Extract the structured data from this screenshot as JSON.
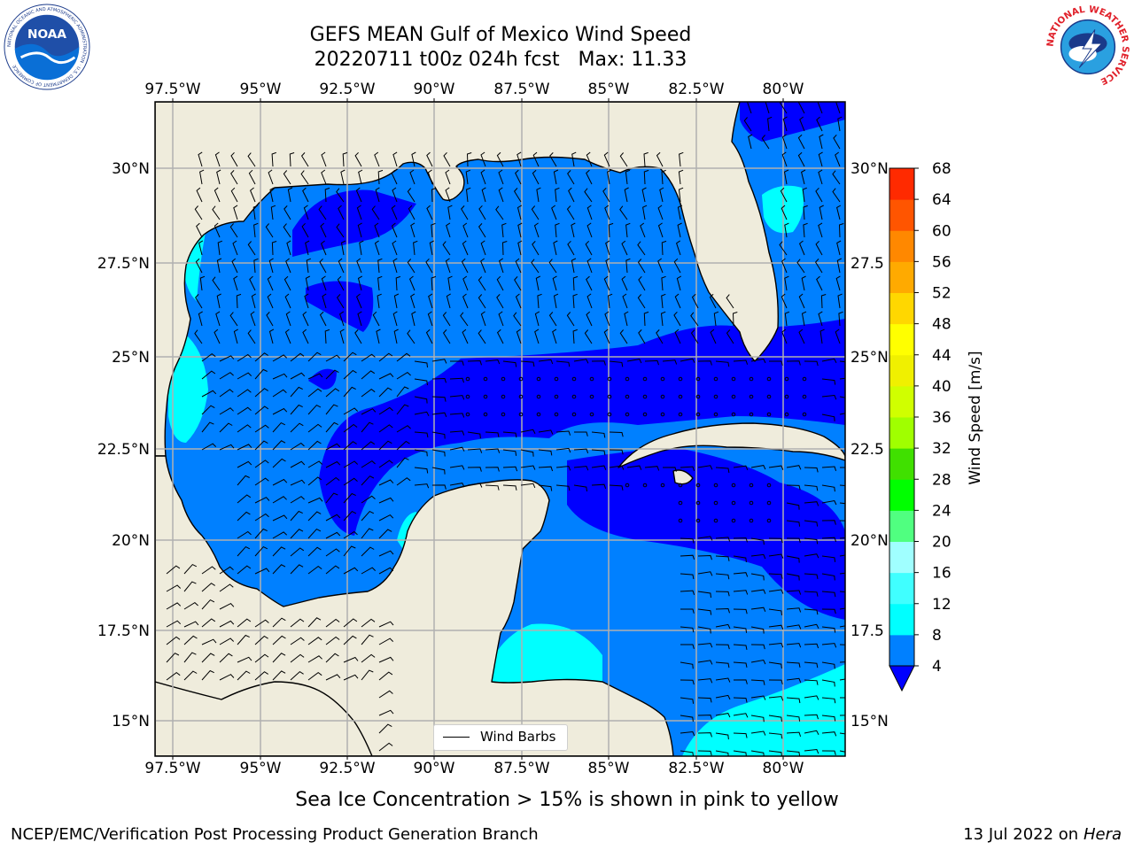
{
  "title": {
    "line1": "GEFS MEAN Gulf of Mexico Wind Speed",
    "line2": "20220711 t00z 024h fcst   Max: 11.33"
  },
  "map": {
    "lon_labels": [
      "97.5°W",
      "95°W",
      "92.5°W",
      "90°W",
      "87.5°W",
      "85°W",
      "82.5°W",
      "80°W"
    ],
    "lat_labels_left": [
      "30°N",
      "27.5°N",
      "25°N",
      "22.5°N",
      "20°N",
      "17.5°N",
      "15°N"
    ],
    "lat_labels_right": [
      "30°N",
      "27.5",
      "25°N",
      "22.5",
      "20°N",
      "17.5",
      "15°N"
    ],
    "lon_range": [
      -98,
      -78.25
    ],
    "lat_range": [
      14,
      31.6
    ],
    "land_color": "#efecdc",
    "ocean_base_color": "#0080ff",
    "legend": {
      "label": "Wind Barbs"
    }
  },
  "colorbar": {
    "label": "Wind Speed [m/s]",
    "ticks": [
      "68",
      "64",
      "60",
      "56",
      "52",
      "48",
      "44",
      "40",
      "36",
      "32",
      "28",
      "24",
      "20",
      "16",
      "12",
      "8",
      "4"
    ],
    "colors": [
      "#0000ff",
      "#0080ff",
      "#00ffff",
      "#40ffff",
      "#a0ffff",
      "#50ff80",
      "#00ff00",
      "#40e000",
      "#a0ff00",
      "#d0ff00",
      "#f0f000",
      "#ffff00",
      "#ffd700",
      "#ffaa00",
      "#ff8800",
      "#ff5500",
      "#ff2a00",
      "#ff0000"
    ]
  },
  "logos": {
    "noaa": {
      "text": "NOAA",
      "ring_text": "NATIONAL OCEANIC AND ATMOSPHERIC ADMINISTRATION · U.S. DEPARTMENT OF COMMERCE"
    },
    "nws": {
      "ring_text": "NATIONAL WEATHER SERVICE"
    }
  },
  "subtitle": "Sea Ice Concentration > 15% is shown in pink to yellow",
  "footer": {
    "left": "NCEP/EMC/Verification Post Processing Product Generation Branch",
    "right_prefix": "13 Jul 2022 on ",
    "right_host": "Hera"
  }
}
